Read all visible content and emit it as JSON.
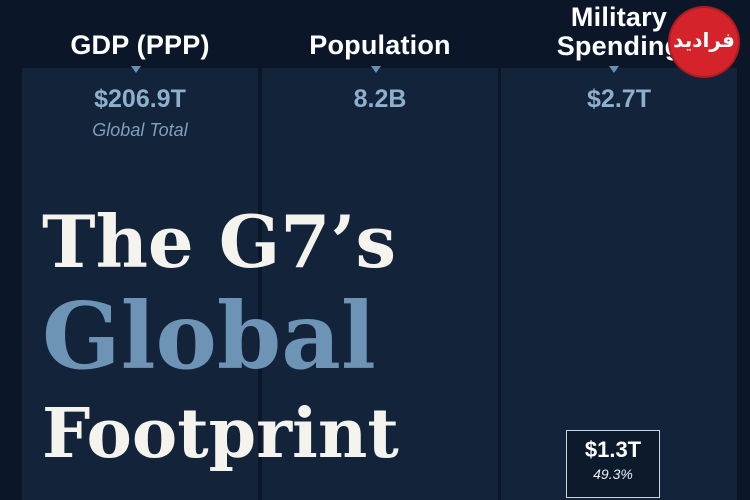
{
  "chart_data": {
    "type": "table",
    "title": [
      "The G7’s",
      "Global",
      "Footprint"
    ],
    "columns": [
      {
        "header": "GDP (PPP)",
        "global_value": "$206.9T",
        "note": "Global Total"
      },
      {
        "header": [
          "Military",
          "Spending"
        ],
        "global_value": "$2.7T"
      },
      {
        "header": "Population",
        "global_value": "8.2B"
      }
    ],
    "g7_military_spending": {
      "value": "$1.3T",
      "share": "49.3%"
    }
  },
  "watermark": {
    "text": "فرادید",
    "color": "#d4232a"
  },
  "colors": {
    "background": "#0b1728",
    "column": "#12233a",
    "accent": "#6d93b5"
  }
}
